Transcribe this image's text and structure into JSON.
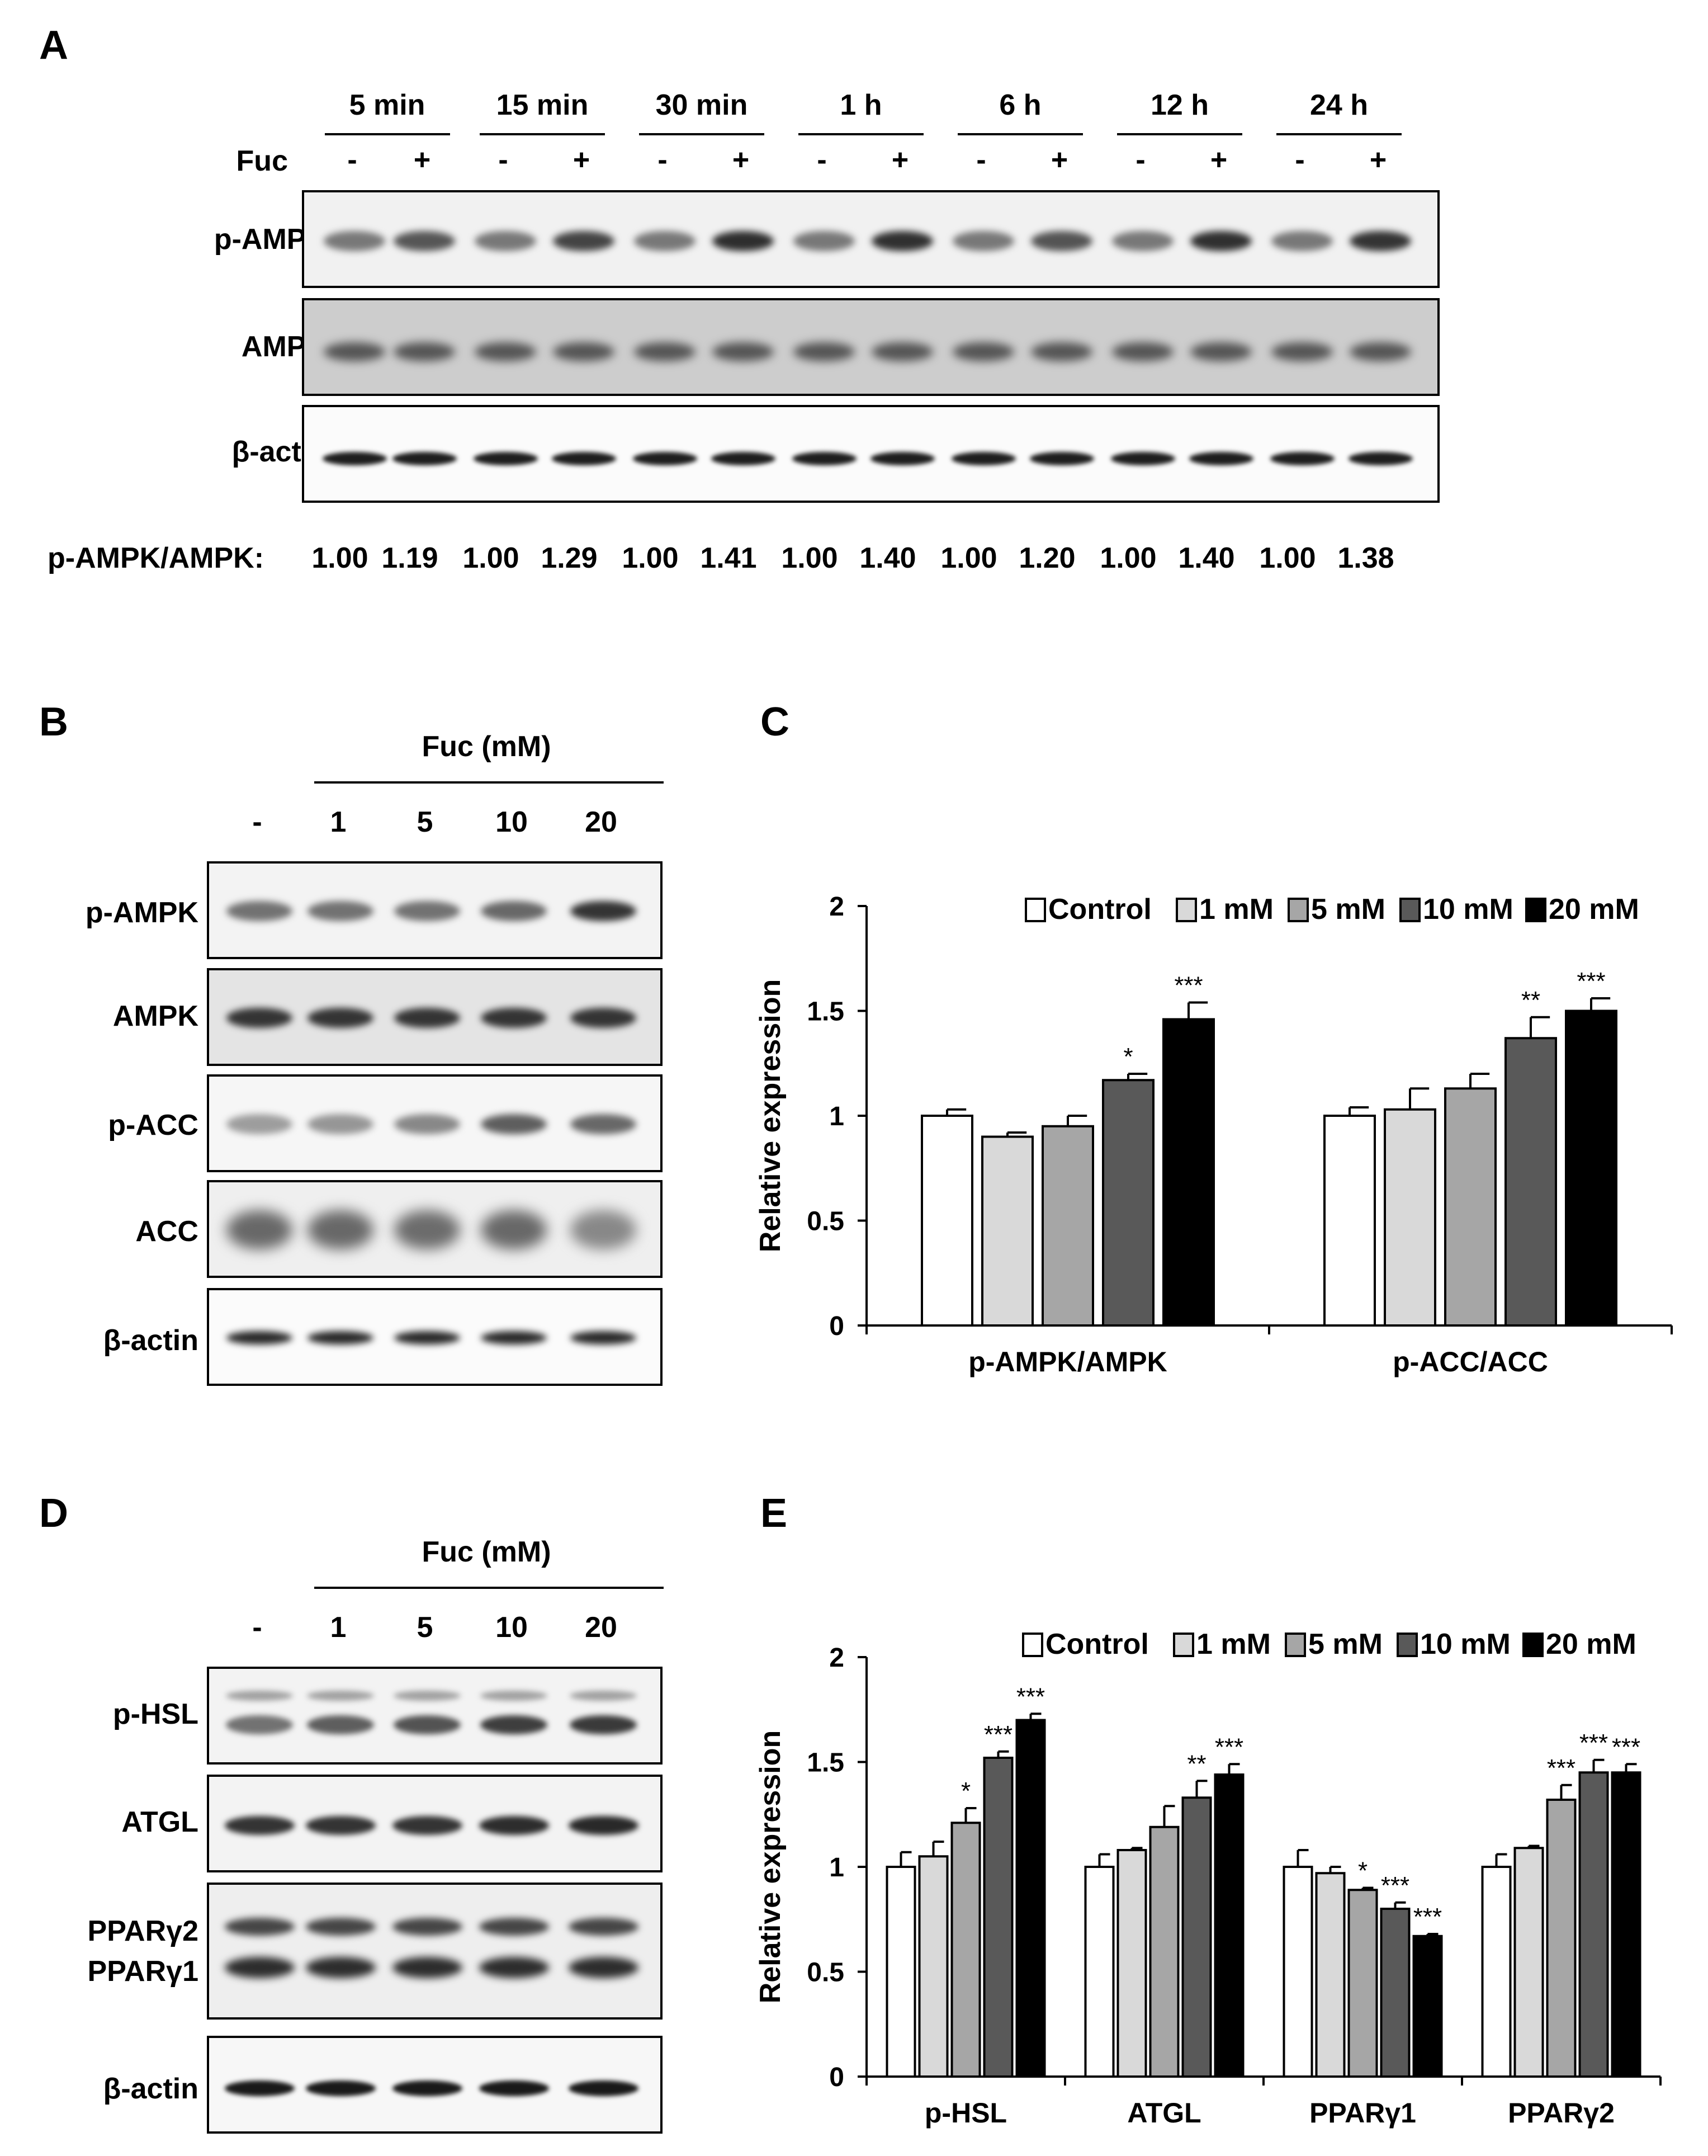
{
  "panels": {
    "A": "A",
    "B": "B",
    "C": "C",
    "D": "D",
    "E": "E"
  },
  "panelA": {
    "timepoints": [
      "5 min",
      "15 min",
      "30 min",
      "1 h",
      "6 h",
      "12 h",
      "24 h"
    ],
    "treatment_label": "Fuc",
    "signs": [
      "-",
      "+",
      "-",
      "+",
      "-",
      "+",
      "-",
      "+",
      "-",
      "+",
      "-",
      "+",
      "-",
      "+"
    ],
    "rows": [
      "p-AMPK",
      "AMPK",
      "β-actin"
    ],
    "ratio_label": "p-AMPK/AMPK:",
    "ratios": [
      "1.00",
      "1.19",
      "1.00",
      "1.29",
      "1.00",
      "1.41",
      "1.00",
      "1.40",
      "1.00",
      "1.20",
      "1.00",
      "1.40",
      "1.00",
      "1.38"
    ]
  },
  "panelB": {
    "header": "Fuc (mM)",
    "doses": [
      "-",
      "1",
      "5",
      "10",
      "20"
    ],
    "rows": [
      "p-AMPK",
      "AMPK",
      "p-ACC",
      "ACC",
      "β-actin"
    ]
  },
  "panelD": {
    "header": "Fuc (mM)",
    "doses": [
      "-",
      "1",
      "5",
      "10",
      "20"
    ],
    "rows": [
      "p-HSL",
      "ATGL",
      "PPARγ2",
      "PPARγ1",
      "β-actin"
    ]
  },
  "colors": {
    "control": "#ffffff",
    "mM1": "#d9d9d9",
    "mM5": "#a6a6a6",
    "mM10": "#595959",
    "mM20": "#000000"
  },
  "chart_data": [
    {
      "panel": "C",
      "type": "bar",
      "categories": [
        "p-AMPK/AMPK",
        "p-ACC/ACC"
      ],
      "series": [
        {
          "name": "Control",
          "values": [
            1.0,
            1.0
          ],
          "errors": [
            0.03,
            0.04
          ],
          "sig": [
            "",
            ""
          ]
        },
        {
          "name": "1 mM",
          "values": [
            0.9,
            1.03
          ],
          "errors": [
            0.02,
            0.1
          ],
          "sig": [
            "",
            ""
          ]
        },
        {
          "name": "5 mM",
          "values": [
            0.95,
            1.13
          ],
          "errors": [
            0.05,
            0.07
          ],
          "sig": [
            "",
            ""
          ]
        },
        {
          "name": "10 mM",
          "values": [
            1.17,
            1.37
          ],
          "errors": [
            0.03,
            0.1
          ],
          "sig": [
            "*",
            "**"
          ]
        },
        {
          "name": "20 mM",
          "values": [
            1.46,
            1.5
          ],
          "errors": [
            0.08,
            0.06
          ],
          "sig": [
            "***",
            "***"
          ]
        }
      ],
      "ylabel": "Relative expression",
      "ylim": [
        0,
        2
      ],
      "yticks": [
        "0",
        "0.5",
        "1",
        "1.5",
        "2"
      ]
    },
    {
      "panel": "E",
      "type": "bar",
      "categories": [
        "p-HSL",
        "ATGL",
        "PPARγ1",
        "PPARγ2"
      ],
      "series": [
        {
          "name": "Control",
          "values": [
            1.0,
            1.0,
            1.0,
            1.0
          ],
          "errors": [
            0.07,
            0.06,
            0.08,
            0.06
          ],
          "sig": [
            "",
            "",
            "",
            ""
          ]
        },
        {
          "name": "1 mM",
          "values": [
            1.05,
            1.08,
            0.97,
            1.09
          ],
          "errors": [
            0.07,
            0.01,
            0.03,
            0.01
          ],
          "sig": [
            "",
            "",
            "",
            ""
          ]
        },
        {
          "name": "5 mM",
          "values": [
            1.21,
            1.19,
            0.89,
            1.32
          ],
          "errors": [
            0.07,
            0.1,
            0.01,
            0.07
          ],
          "sig": [
            "*",
            "",
            "*",
            "***"
          ]
        },
        {
          "name": "10 mM",
          "values": [
            1.52,
            1.33,
            0.8,
            1.45
          ],
          "errors": [
            0.03,
            0.08,
            0.03,
            0.06
          ],
          "sig": [
            "***",
            "**",
            "***",
            "***"
          ]
        },
        {
          "name": "20 mM",
          "values": [
            1.7,
            1.44,
            0.67,
            1.45
          ],
          "errors": [
            0.03,
            0.05,
            0.01,
            0.04
          ],
          "sig": [
            "***",
            "***",
            "***",
            "***"
          ]
        }
      ],
      "ylabel": "Relative expression",
      "ylim": [
        0,
        2
      ],
      "yticks": [
        "0",
        "0.5",
        "1",
        "1.5",
        "2"
      ]
    }
  ]
}
